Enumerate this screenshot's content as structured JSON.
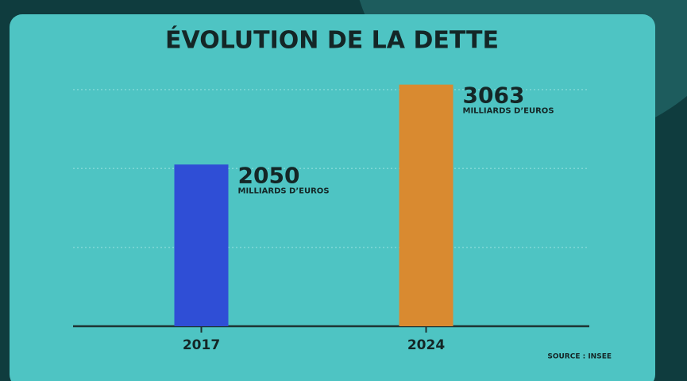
{
  "chart_data": {
    "type": "bar",
    "title": "ÉVOLUTION DE LA DETTE",
    "categories": [
      "2017",
      "2024"
    ],
    "values": [
      2050,
      3063
    ],
    "colors": [
      "#2f4ed6",
      "#d98a30"
    ],
    "unit": "MILLIARDS D’EUROS",
    "ylim": [
      0,
      3200
    ],
    "gridlines": [
      1000,
      2000,
      3000
    ],
    "source": "SOURCE : INSEE"
  }
}
